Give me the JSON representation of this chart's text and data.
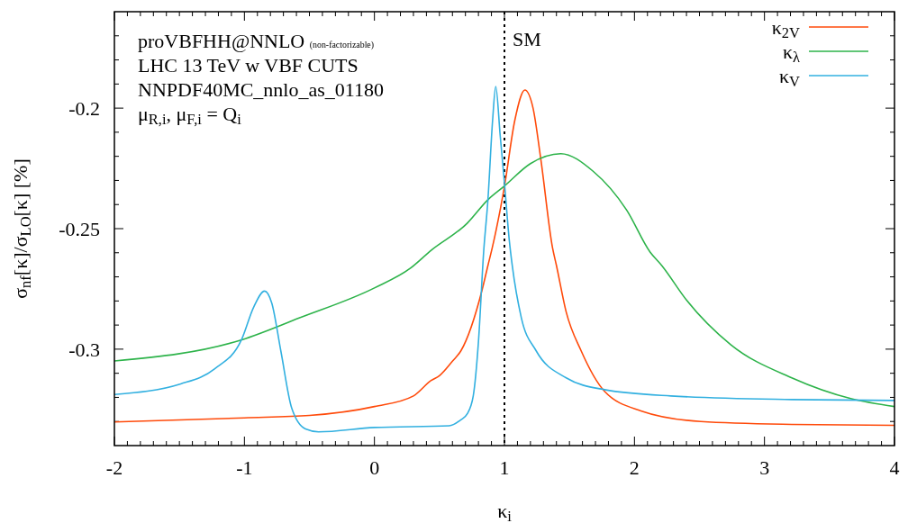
{
  "chart_data": {
    "type": "line",
    "xlabel": "κ$_{i}$",
    "ylabel": "σ$_{nf}$[κ]/σ$_{LO}$[κ]  [%]",
    "annotations": [
      "proVBFHH@NNLO (non-factorizable)",
      "LHC 13 TeV w VBF CUTS",
      "NNPDF40MC_nnlo_as_01180",
      "μ$_{R,i}$, μ$_{F,i}$ = Q$_{i}$"
    ],
    "xlim": [
      -2,
      4
    ],
    "ylim": [
      -0.34,
      -0.16
    ],
    "xticks": [
      -2,
      {
        "value": -1.9,
        "label": null
      },
      {
        "value": -1.8,
        "label": null
      },
      {
        "value": -1.7,
        "label": null
      },
      {
        "value": -1.6,
        "label": null
      },
      {
        "value": -1.5,
        "label": null
      },
      {
        "value": -1.4,
        "label": null
      },
      {
        "value": -1.3,
        "label": null
      },
      {
        "value": -1.2,
        "label": null
      },
      {
        "value": -1.1,
        "label": null
      },
      -1,
      {
        "value": -0.9,
        "label": null
      },
      {
        "value": -0.8,
        "label": null
      },
      {
        "value": -0.7,
        "label": null
      },
      {
        "value": -0.6,
        "label": null
      },
      {
        "value": -0.5,
        "label": null
      },
      {
        "value": -0.4,
        "label": null
      },
      {
        "value": -0.3,
        "label": null
      },
      {
        "value": -0.2,
        "label": null
      },
      {
        "value": -0.1,
        "label": null
      },
      0,
      {
        "value": 0.1,
        "label": null
      },
      {
        "value": 0.2,
        "label": null
      },
      {
        "value": 0.3,
        "label": null
      },
      {
        "value": 0.4,
        "label": null
      },
      {
        "value": 0.5,
        "label": null
      },
      {
        "value": 0.6,
        "label": null
      },
      {
        "value": 0.7,
        "label": null
      },
      {
        "value": 0.8,
        "label": null
      },
      {
        "value": 0.9,
        "label": null
      },
      1,
      {
        "value": 1.1,
        "label": null
      },
      {
        "value": 1.2,
        "label": null
      },
      {
        "value": 1.3,
        "label": null
      },
      {
        "value": 1.4,
        "label": null
      },
      {
        "value": 1.5,
        "label": null
      },
      {
        "value": 1.6,
        "label": null
      },
      {
        "value": 1.7,
        "label": null
      },
      {
        "value": 1.8,
        "label": null
      },
      {
        "value": 1.9,
        "label": null
      },
      2,
      {
        "value": 2.1,
        "label": null
      },
      {
        "value": 2.2,
        "label": null
      },
      {
        "value": 2.3,
        "label": null
      },
      {
        "value": 2.4,
        "label": null
      },
      {
        "value": 2.5,
        "label": null
      },
      {
        "value": 2.6,
        "label": null
      },
      {
        "value": 2.7,
        "label": null
      },
      {
        "value": 2.8,
        "label": null
      },
      {
        "value": 2.9,
        "label": null
      },
      3,
      {
        "value": 3.1,
        "label": null
      },
      {
        "value": 3.2,
        "label": null
      },
      {
        "value": 3.3,
        "label": null
      },
      {
        "value": 3.4,
        "label": null
      },
      {
        "value": 3.5,
        "label": null
      },
      {
        "value": 3.6,
        "label": null
      },
      {
        "value": 3.7,
        "label": null
      },
      {
        "value": 3.8,
        "label": null
      },
      {
        "value": 3.9,
        "label": null
      },
      4
    ],
    "yticks": [
      {
        "value": -0.33,
        "label": null
      },
      {
        "value": -0.32,
        "label": null
      },
      {
        "value": -0.31,
        "label": null
      },
      -0.3,
      {
        "value": -0.29,
        "label": null
      },
      {
        "value": -0.28,
        "label": null
      },
      {
        "value": -0.27,
        "label": null
      },
      {
        "value": -0.26,
        "label": null
      },
      -0.25,
      {
        "value": -0.24,
        "label": null
      },
      {
        "value": -0.23,
        "label": null
      },
      {
        "value": -0.22,
        "label": null
      },
      {
        "value": -0.21,
        "label": null
      },
      -0.2,
      {
        "value": -0.19,
        "label": null
      },
      {
        "value": -0.18,
        "label": null
      },
      {
        "value": -0.17,
        "label": null
      }
    ],
    "grid": false,
    "legend": "top right",
    "line_style": "solid",
    "marker": "none",
    "ref_lines": [
      {
        "axis": "x",
        "value": 1,
        "label": "SM",
        "color": "#000000",
        "line_style": "dotted"
      }
    ],
    "series": [
      {
        "name": "κ$_{2V}$",
        "color": "#ff4a0a",
        "x": [
          -2,
          -1,
          -0.5,
          0,
          0.3,
          0.436,
          0.5,
          0.6,
          0.665,
          0.83,
          0.873,
          0.906,
          1,
          1.08,
          1.157,
          1.22,
          1.28,
          1.37,
          1.4,
          1.475,
          1.59,
          1.77,
          2.05,
          2.51,
          3.21,
          4
        ],
        "values": [
          -0.3302,
          -0.3285,
          -0.3275,
          -0.3238,
          -0.3194,
          -0.313,
          -0.311,
          -0.305,
          -0.3007,
          -0.275,
          -0.2653,
          -0.258,
          -0.2325,
          -0.205,
          -0.1925,
          -0.2,
          -0.2213,
          -0.258,
          -0.2653,
          -0.2846,
          -0.3007,
          -0.3175,
          -0.3256,
          -0.33,
          -0.3312,
          -0.3316
        ]
      },
      {
        "name": "κ$_{λ}$",
        "color": "#2db34a",
        "x": [
          -2,
          -1.02,
          -0.58,
          0,
          0.277,
          0.436,
          0.713,
          0.873,
          1,
          1.2,
          1.433,
          1.68,
          1.94,
          2.12,
          2.21,
          2.4,
          2.74,
          3.21,
          3.67,
          4
        ],
        "values": [
          -0.3049,
          -0.2961,
          -0.2871,
          -0.2746,
          -0.2664,
          -0.259,
          -0.2478,
          -0.238,
          -0.2323,
          -0.223,
          -0.2189,
          -0.2261,
          -0.2423,
          -0.2597,
          -0.2653,
          -0.2796,
          -0.2981,
          -0.3119,
          -0.3206,
          -0.3238
        ]
      },
      {
        "name": "κ$_{V}$",
        "color": "#32b0e0",
        "x": [
          -2,
          -1.49,
          -1.23,
          -1.02,
          -0.93,
          -0.845,
          -0.79,
          -0.72,
          -0.637,
          -0.53,
          -0.43,
          0,
          0.575,
          0.665,
          0.713,
          0.76,
          0.8,
          0.84,
          0.873,
          0.909,
          0.933,
          0.967,
          1,
          1.037,
          1.06,
          1.13,
          1.244,
          1.475,
          1.77,
          2.28,
          3.21,
          4
        ],
        "values": [
          -0.3188,
          -0.3144,
          -0.3082,
          -0.2958,
          -0.2827,
          -0.2759,
          -0.2808,
          -0.3007,
          -0.3243,
          -0.3331,
          -0.3343,
          -0.3325,
          -0.3318,
          -0.3293,
          -0.3269,
          -0.3194,
          -0.297,
          -0.2597,
          -0.238,
          -0.205,
          -0.191,
          -0.2112,
          -0.231,
          -0.2547,
          -0.2653,
          -0.287,
          -0.3007,
          -0.3119,
          -0.3168,
          -0.3194,
          -0.3209,
          -0.3213
        ]
      }
    ]
  }
}
